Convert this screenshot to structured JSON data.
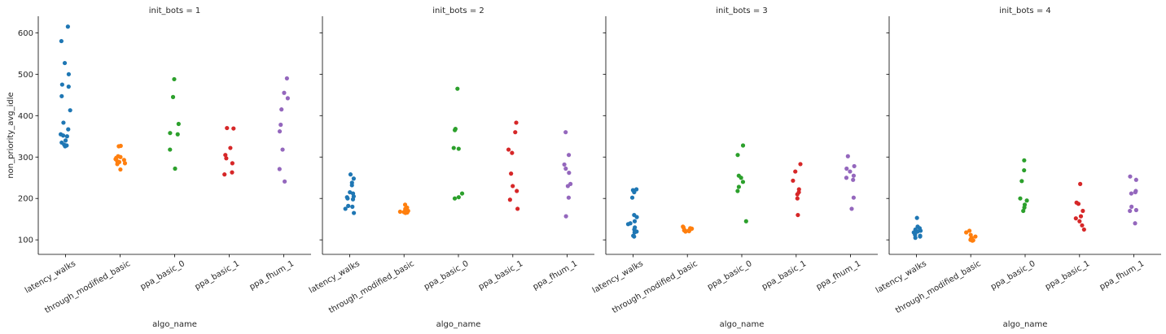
{
  "chart_data": {
    "type": "scatter",
    "subtype": "strip",
    "ylabel": "non_priority_avg_idle",
    "xlabel": "algo_name",
    "ylim": [
      65,
      640
    ],
    "yticks": [
      100,
      200,
      300,
      400,
      500,
      600
    ],
    "categories": [
      "latency_walks",
      "through_modified_basic",
      "ppa_basic_0",
      "ppa_basic_1",
      "ppa_fhum_1"
    ],
    "colors": {
      "latency_walks": "#1f77b4",
      "through_modified_basic": "#ff7f0e",
      "ppa_basic_0": "#2ca02c",
      "ppa_basic_1": "#d62728",
      "ppa_fhum_1": "#9467bd"
    },
    "grid": false,
    "legend": "none",
    "facets": [
      {
        "title": "init_bots = 1",
        "series": {
          "latency_walks": [
            615,
            580,
            527,
            500,
            475,
            470,
            447,
            413,
            383,
            367,
            355,
            352,
            350,
            340,
            335,
            330,
            328,
            326
          ],
          "through_modified_basic": [
            327,
            326,
            302,
            300,
            298,
            295,
            293,
            290,
            288,
            285,
            283,
            270
          ],
          "ppa_basic_0": [
            488,
            445,
            380,
            358,
            355,
            318,
            272
          ],
          "ppa_basic_1": [
            370,
            369,
            322,
            305,
            297,
            285,
            263,
            258
          ],
          "ppa_fhum_1": [
            490,
            455,
            442,
            415,
            378,
            362,
            318,
            271,
            241
          ]
        }
      },
      {
        "title": "init_bots = 2",
        "series": {
          "latency_walks": [
            258,
            248,
            238,
            232,
            215,
            212,
            205,
            203,
            200,
            198,
            182,
            180,
            175,
            165
          ],
          "through_modified_basic": [
            185,
            178,
            175,
            172,
            170,
            169,
            168,
            167,
            166,
            165
          ],
          "ppa_basic_0": [
            465,
            368,
            365,
            322,
            320,
            212,
            203,
            200
          ],
          "ppa_basic_1": [
            383,
            360,
            318,
            310,
            260,
            230,
            218,
            197,
            175
          ],
          "ppa_fhum_1": [
            360,
            305,
            282,
            272,
            262,
            235,
            230,
            202,
            157
          ]
        }
      },
      {
        "title": "init_bots = 3",
        "series": {
          "latency_walks": [
            222,
            220,
            215,
            202,
            160,
            155,
            145,
            140,
            138,
            130,
            125,
            120,
            118,
            110,
            108
          ],
          "through_modified_basic": [
            132,
            130,
            128,
            127,
            125,
            124,
            123,
            122,
            121,
            120
          ],
          "ppa_basic_0": [
            328,
            305,
            255,
            250,
            240,
            228,
            218,
            145
          ],
          "ppa_basic_1": [
            283,
            265,
            243,
            222,
            215,
            210,
            200,
            160
          ],
          "ppa_fhum_1": [
            302,
            278,
            272,
            265,
            255,
            250,
            245,
            202,
            175
          ]
        }
      },
      {
        "title": "init_bots = 4",
        "series": {
          "latency_walks": [
            153,
            132,
            128,
            125,
            122,
            120,
            118,
            115,
            112,
            110,
            108,
            105
          ],
          "through_modified_basic": [
            122,
            118,
            112,
            108,
            105,
            103,
            102,
            100,
            99,
            98
          ],
          "ppa_basic_0": [
            292,
            268,
            242,
            200,
            195,
            185,
            178,
            170
          ],
          "ppa_basic_1": [
            235,
            190,
            187,
            170,
            157,
            152,
            145,
            135,
            125
          ],
          "ppa_fhum_1": [
            253,
            245,
            218,
            215,
            212,
            180,
            172,
            170,
            140
          ]
        }
      }
    ]
  }
}
